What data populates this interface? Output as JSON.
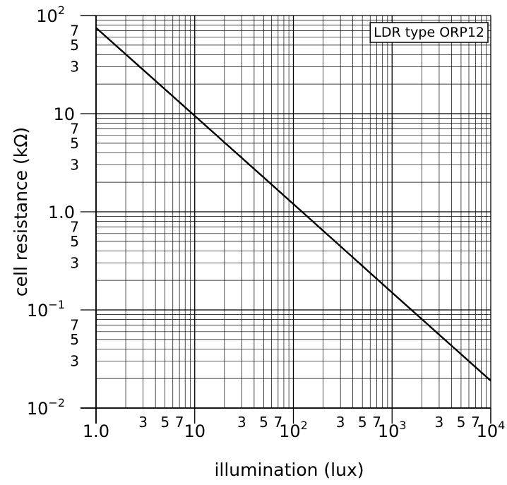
{
  "chart_data": {
    "type": "line",
    "title": "",
    "legend": "LDR type ORP12",
    "legend_position": "top-right",
    "xlabel": "illumination (lux)",
    "ylabel": "cell resistance (kΩ)",
    "x_scale": "log",
    "y_scale": "log",
    "xlim": [
      1,
      10000
    ],
    "ylim": [
      0.01,
      100
    ],
    "grid": true,
    "x_ticks": [
      {
        "base": "1.0",
        "exp": ""
      },
      {
        "base": "10",
        "exp": ""
      },
      {
        "base": "10",
        "exp": "2"
      },
      {
        "base": "10",
        "exp": "3"
      },
      {
        "base": "10",
        "exp": "4"
      }
    ],
    "y_ticks": [
      {
        "base": "10",
        "exp": "2"
      },
      {
        "base": "10",
        "exp": ""
      },
      {
        "base": "1.0",
        "exp": ""
      },
      {
        "base": "10",
        "exp": "−1"
      },
      {
        "base": "10",
        "exp": "−2"
      }
    ],
    "minor_tick_labels": [
      "3",
      "5",
      "7"
    ],
    "series": [
      {
        "x": [
          1,
          10,
          100,
          1000,
          10000
        ],
        "y": [
          75,
          9.5,
          1.2,
          0.15,
          0.019
        ]
      }
    ]
  }
}
